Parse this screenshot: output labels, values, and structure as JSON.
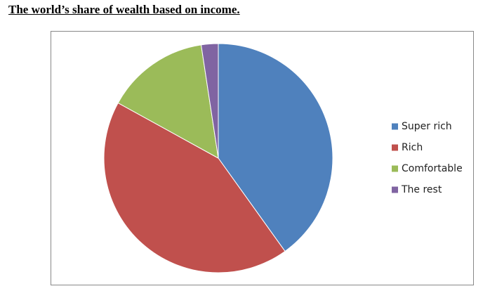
{
  "chart_data": {
    "type": "pie",
    "title": "The world’s share of wealth based on income.",
    "categories": [
      "Super rich",
      "Rich",
      "Comfortable",
      "The rest"
    ],
    "values": [
      40.1,
      42.9,
      14.6,
      2.4
    ],
    "colors": [
      "#4f81bd",
      "#c0504d",
      "#9bbb59",
      "#8064a2"
    ],
    "legend": "right"
  }
}
